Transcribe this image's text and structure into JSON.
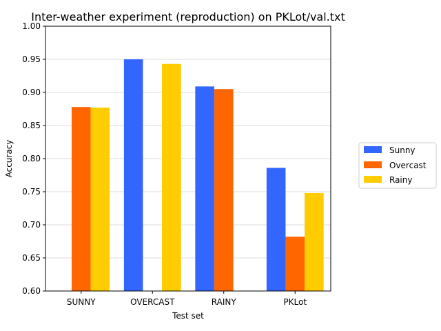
{
  "chart_data": {
    "type": "bar",
    "title": "Inter-weather experiment (reproduction) on PKLot/val.txt",
    "xlabel": "Test set",
    "ylabel": "Accuracy",
    "categories": [
      "SUNNY",
      "OVERCAST",
      "RAINY",
      "PKLot"
    ],
    "ylim": [
      0.6,
      1.0
    ],
    "yticks": [
      "0.60",
      "0.65",
      "0.70",
      "0.75",
      "0.80",
      "0.85",
      "0.90",
      "0.95",
      "1.00"
    ],
    "grid": "horizontal",
    "legend_position": "right",
    "series": [
      {
        "name": "Sunny",
        "color": "#3366ff",
        "values": [
          null,
          0.95,
          0.909,
          0.786
        ]
      },
      {
        "name": "Overcast",
        "color": "#ff6600",
        "values": [
          0.878,
          null,
          0.905,
          0.682
        ]
      },
      {
        "name": "Rainy",
        "color": "#ffcc00",
        "values": [
          0.877,
          0.943,
          null,
          0.748
        ]
      }
    ]
  }
}
